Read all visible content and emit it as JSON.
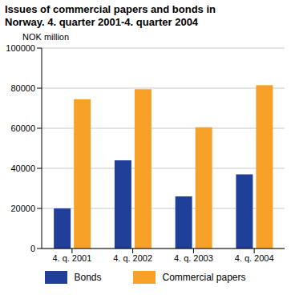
{
  "chart_data": {
    "type": "bar",
    "title": "Issues of commercial papers and bonds in Norway. 4. quarter 2001-4. quarter 2004",
    "y_label": "NOK million",
    "categories": [
      "4. q. 2001",
      "4. q. 2002",
      "4. q. 2003",
      "4. q. 2004"
    ],
    "series": [
      {
        "name": "Bonds",
        "color": "#1f3f99",
        "values": [
          20000,
          44000,
          26000,
          37000
        ]
      },
      {
        "name": "Commercial papers",
        "color": "#f7a129",
        "values": [
          74500,
          79500,
          60500,
          81500
        ]
      }
    ],
    "ylim": [
      0,
      100000
    ],
    "yticks": [
      0,
      20000,
      40000,
      60000,
      80000,
      100000
    ],
    "grid": true
  }
}
